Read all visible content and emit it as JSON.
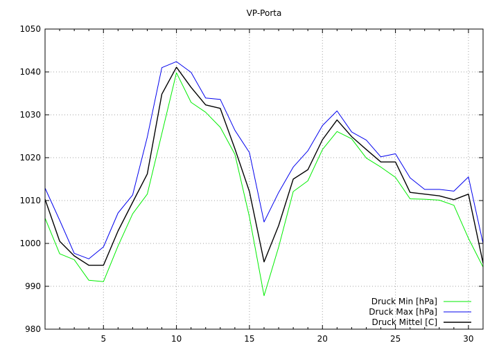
{
  "chart_data": {
    "type": "line",
    "title": "VP-Porta",
    "xlabel": "",
    "ylabel": "",
    "xlim": [
      1,
      31
    ],
    "ylim": [
      980,
      1050
    ],
    "grid": true,
    "legend_position": "bottom-right",
    "x_ticks": [
      5,
      10,
      15,
      20,
      25,
      30
    ],
    "x_tick_labels": [
      "5",
      "10",
      "15",
      "20",
      "25",
      "30"
    ],
    "y_ticks": [
      980,
      990,
      1000,
      1010,
      1020,
      1030,
      1040,
      1050
    ],
    "y_tick_labels": [
      "980",
      "990",
      "1000",
      "1010",
      "1020",
      "1030",
      "1040",
      "1050"
    ],
    "x": [
      1,
      2,
      3,
      4,
      5,
      6,
      7,
      8,
      9,
      10,
      11,
      12,
      13,
      14,
      15,
      16,
      17,
      18,
      19,
      20,
      21,
      22,
      23,
      24,
      25,
      26,
      27,
      28,
      29,
      30,
      31
    ],
    "series": [
      {
        "name": "Druck Min [hPa]",
        "color": "#00ee00",
        "values": [
          1005.9,
          997.6,
          996.2,
          991.4,
          991.1,
          999.4,
          1006.9,
          1011.5,
          1025.6,
          1039.8,
          1032.9,
          1030.6,
          1027.1,
          1020.8,
          1006.2,
          987.8,
          999.2,
          1012.1,
          1014.6,
          1021.9,
          1026.1,
          1024.4,
          1019.9,
          1017.8,
          1015.4,
          1010.4,
          1010.3,
          1010.1,
          1008.9,
          1001.2,
          994.5
        ]
      },
      {
        "name": "Druck Max [hPa]",
        "color": "#0000ee",
        "values": [
          1012.9,
          1005.4,
          997.7,
          996.4,
          999.2,
          1007.1,
          1011.3,
          1024.8,
          1041.0,
          1042.4,
          1039.9,
          1033.9,
          1033.6,
          1026.4,
          1021.2,
          1005.0,
          1011.9,
          1017.8,
          1021.6,
          1027.5,
          1030.9,
          1026.0,
          1024.1,
          1020.2,
          1020.9,
          1015.3,
          1012.6,
          1012.6,
          1012.2,
          1015.5,
          1000.0
        ]
      },
      {
        "name": "Druck Mittel [C]",
        "color": "#000000",
        "values": [
          1010.3,
          1000.5,
          997.1,
          994.9,
          994.9,
          1002.9,
          1009.6,
          1016.2,
          1034.8,
          1041.1,
          1036.4,
          1032.3,
          1031.5,
          1022.1,
          1012.1,
          995.7,
          1004.2,
          1015.0,
          1017.2,
          1024.2,
          1028.8,
          1024.9,
          1021.9,
          1019.0,
          1019.0,
          1011.9,
          1011.5,
          1011.1,
          1010.2,
          1011.5,
          995.4
        ]
      }
    ]
  }
}
